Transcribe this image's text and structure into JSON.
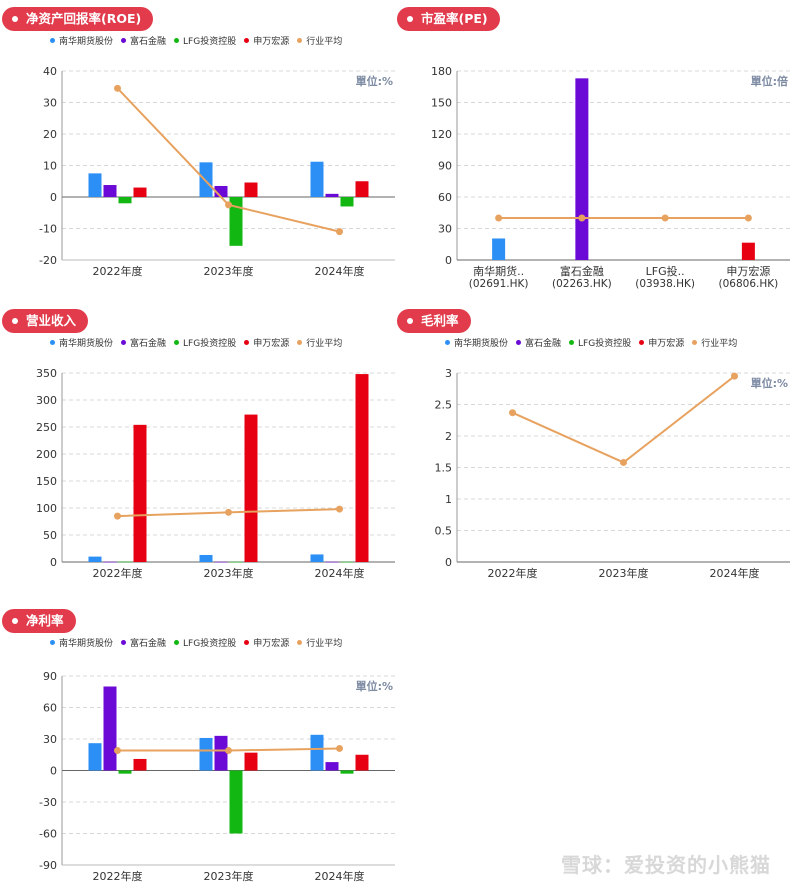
{
  "legend": [
    {
      "name": "南华期货股份",
      "color": "#2b8ff5"
    },
    {
      "name": "富石金融",
      "color": "#6b09d6"
    },
    {
      "name": "LFG投资控股",
      "color": "#12b712"
    },
    {
      "name": "申万宏源",
      "color": "#e60012"
    },
    {
      "name": "行业平均",
      "color": "#e8a25f"
    }
  ],
  "colors": {
    "avg": "#e8a25f"
  },
  "watermark": "雪球：爱投资的小熊猫",
  "chart_data": [
    {
      "title": "净资产回报率(ROE)",
      "type": "bar",
      "unit": "單位:%",
      "categories": [
        "2022年度",
        "2023年度",
        "2024年度"
      ],
      "yticks": [
        40,
        30,
        20,
        10,
        0,
        -10,
        -20
      ],
      "ylim": [
        -20,
        40
      ],
      "series": [
        {
          "name": "南华期货股份",
          "values": [
            7.5,
            11,
            11.2
          ]
        },
        {
          "name": "富石金融",
          "values": [
            3.8,
            3.5,
            1
          ]
        },
        {
          "name": "LFG投资控股",
          "values": [
            -2,
            -15.5,
            -3
          ]
        },
        {
          "name": "申万宏源",
          "values": [
            3,
            4.6,
            5
          ]
        }
      ],
      "avg": [
        34.5,
        -2.5,
        -11
      ]
    },
    {
      "title": "市盈率(PE)",
      "type": "bar",
      "unit": "單位:倍",
      "categories": [
        "南华期货..",
        "富石金融",
        "LFG投..",
        "申万宏源"
      ],
      "categories2": [
        "(02691.HK)",
        "(02263.HK)",
        "(03938.HK)",
        "(06806.HK)"
      ],
      "yticks": [
        180,
        150,
        120,
        90,
        60,
        30,
        0
      ],
      "ylim": [
        0,
        180
      ],
      "values": [
        20.5,
        173,
        0,
        16.5
      ],
      "avg": [
        40,
        40,
        40,
        40
      ]
    },
    {
      "title": "营业收入",
      "type": "bar",
      "unit": "",
      "categories": [
        "2022年度",
        "2023年度",
        "2024年度"
      ],
      "yticks": [
        350,
        300,
        250,
        200,
        150,
        100,
        50,
        0
      ],
      "ylim": [
        0,
        350
      ],
      "series": [
        {
          "name": "南华期货股份",
          "values": [
            10,
            13,
            14
          ]
        },
        {
          "name": "富石金融",
          "values": [
            0.4,
            0.4,
            0.4
          ]
        },
        {
          "name": "LFG投资控股",
          "values": [
            0.6,
            0.4,
            0.4
          ]
        },
        {
          "name": "申万宏源",
          "values": [
            254,
            273,
            348
          ]
        }
      ],
      "avg": [
        85,
        92,
        98
      ]
    },
    {
      "title": "毛利率",
      "type": "line",
      "unit": "單位:%",
      "categories": [
        "2022年度",
        "2023年度",
        "2024年度"
      ],
      "yticks": [
        3,
        2.5,
        2,
        1.5,
        1,
        0.5,
        0
      ],
      "ylim": [
        0,
        3
      ],
      "avg": [
        2.37,
        1.58,
        2.95
      ]
    },
    {
      "title": "净利率",
      "type": "bar",
      "unit": "單位:%",
      "categories": [
        "2022年度",
        "2023年度",
        "2024年度"
      ],
      "yticks": [
        90,
        60,
        30,
        0,
        -30,
        -60,
        -90
      ],
      "ylim": [
        -90,
        90
      ],
      "series": [
        {
          "name": "南华期货股份",
          "values": [
            26,
            31,
            34
          ]
        },
        {
          "name": "富石金融",
          "values": [
            80,
            33,
            8
          ]
        },
        {
          "name": "LFG投资控股",
          "values": [
            -3,
            -60,
            -3
          ]
        },
        {
          "name": "申万宏源",
          "values": [
            11,
            17,
            15
          ]
        }
      ],
      "avg": [
        19,
        19,
        21
      ]
    }
  ]
}
